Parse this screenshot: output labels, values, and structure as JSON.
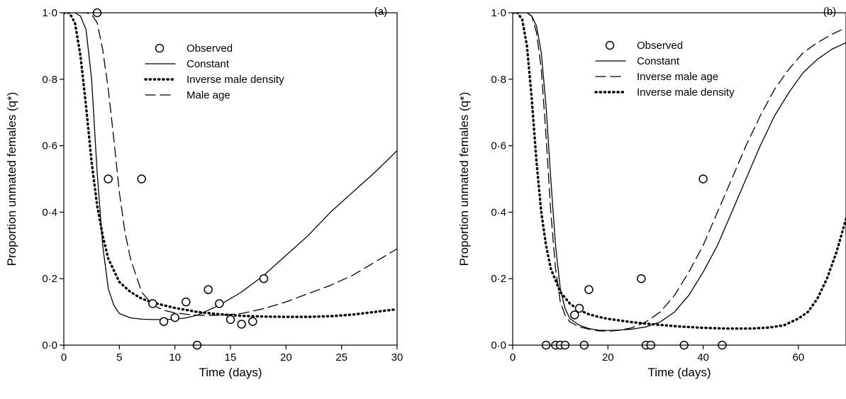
{
  "chart_data": [
    {
      "type": "scatter",
      "panel": "(a)",
      "xlabel": "Time (days)",
      "ylabel": "Proportion unmated females (q*)",
      "xlim": [
        0,
        30
      ],
      "ylim": [
        0,
        1
      ],
      "xticks": [
        0,
        5,
        10,
        15,
        20,
        25,
        30
      ],
      "xtick_labels": [
        "0",
        "5",
        "10",
        "15",
        "20",
        "25",
        "30"
      ],
      "yticks": [
        0,
        0.2,
        0.4,
        0.6,
        0.8,
        1.0
      ],
      "ytick_labels": [
        "0·0",
        "0·2",
        "0·4",
        "0·6",
        "0·8",
        "1·0"
      ],
      "legend_position": "upper-center",
      "series": [
        {
          "name": "Observed",
          "kind": "points",
          "x": [
            3,
            4,
            7,
            8,
            9,
            10,
            11,
            12,
            13,
            14,
            15,
            16,
            17,
            18
          ],
          "y": [
            1.0,
            0.5,
            0.5,
            0.125,
            0.071,
            0.083,
            0.13,
            0.0,
            0.167,
            0.125,
            0.077,
            0.063,
            0.071,
            0.2
          ]
        },
        {
          "name": "Constant",
          "kind": "line",
          "style": "solid",
          "x": [
            0,
            1,
            1.5,
            2,
            2.5,
            3,
            3.5,
            4,
            4.5,
            5,
            6,
            7,
            8,
            9,
            10,
            11,
            12,
            14,
            16,
            18,
            20,
            22,
            24,
            26,
            28,
            30
          ],
          "y": [
            1.0,
            1.0,
            0.99,
            0.95,
            0.8,
            0.52,
            0.3,
            0.17,
            0.12,
            0.095,
            0.082,
            0.078,
            0.077,
            0.077,
            0.078,
            0.082,
            0.09,
            0.12,
            0.16,
            0.21,
            0.27,
            0.33,
            0.4,
            0.46,
            0.52,
            0.585
          ]
        },
        {
          "name": "Inverse male density",
          "kind": "line",
          "style": "dotted",
          "x": [
            0,
            0.5,
            1,
            1.5,
            2,
            2.5,
            3,
            3.5,
            4,
            5,
            6,
            7,
            8,
            9,
            10,
            12,
            14,
            16,
            18,
            20,
            22,
            24,
            26,
            28,
            30
          ],
          "y": [
            1.0,
            1.0,
            0.97,
            0.87,
            0.72,
            0.55,
            0.42,
            0.33,
            0.26,
            0.19,
            0.16,
            0.14,
            0.128,
            0.12,
            0.112,
            0.1,
            0.093,
            0.088,
            0.086,
            0.085,
            0.085,
            0.087,
            0.092,
            0.1,
            0.108
          ]
        },
        {
          "name": "Male age",
          "kind": "line",
          "style": "dashed",
          "x": [
            0,
            2,
            2.5,
            3,
            3.5,
            4,
            4.5,
            5,
            5.5,
            6,
            7,
            8,
            9,
            10,
            11,
            12,
            14,
            16,
            18,
            20,
            22,
            24,
            26,
            28,
            30
          ],
          "y": [
            1.0,
            1.0,
            0.995,
            0.97,
            0.89,
            0.77,
            0.62,
            0.46,
            0.34,
            0.26,
            0.16,
            0.12,
            0.105,
            0.097,
            0.093,
            0.09,
            0.09,
            0.095,
            0.11,
            0.13,
            0.155,
            0.18,
            0.21,
            0.25,
            0.29
          ]
        }
      ]
    },
    {
      "type": "scatter",
      "panel": "(b)",
      "xlabel": "Time (days)",
      "ylabel": "Proportion unmated females (q*)",
      "xlim": [
        0,
        70
      ],
      "ylim": [
        0,
        1
      ],
      "xticks": [
        0,
        20,
        40,
        60
      ],
      "xtick_labels": [
        "0",
        "20",
        "40",
        "60"
      ],
      "yticks": [
        0,
        0.2,
        0.4,
        0.6,
        0.8,
        1.0
      ],
      "ytick_labels": [
        "0·0",
        "0·2",
        "0·4",
        "0·6",
        "0·8",
        "1·0"
      ],
      "legend_position": "upper-center",
      "series": [
        {
          "name": "Observed",
          "kind": "points",
          "x": [
            7,
            9,
            10,
            11,
            13,
            14,
            15,
            16,
            27,
            28,
            29,
            36,
            40,
            44
          ],
          "y": [
            0.0,
            0.0,
            0.0,
            0.0,
            0.091,
            0.111,
            0.0,
            0.167,
            0.2,
            0.0,
            0.0,
            0.0,
            0.5,
            0.0
          ]
        },
        {
          "name": "Constant",
          "kind": "line",
          "style": "solid",
          "x": [
            0,
            3,
            4,
            5,
            6,
            7,
            8,
            9,
            10,
            11,
            12,
            14,
            16,
            18,
            20,
            22,
            25,
            28,
            31,
            34,
            37,
            40,
            43,
            46,
            49,
            52,
            55,
            58,
            61,
            64,
            67,
            70
          ],
          "y": [
            1.0,
            1.0,
            0.99,
            0.96,
            0.88,
            0.72,
            0.5,
            0.3,
            0.17,
            0.11,
            0.08,
            0.06,
            0.05,
            0.045,
            0.044,
            0.045,
            0.048,
            0.055,
            0.07,
            0.1,
            0.15,
            0.22,
            0.3,
            0.4,
            0.5,
            0.6,
            0.69,
            0.76,
            0.82,
            0.86,
            0.89,
            0.91
          ]
        },
        {
          "name": "Inverse male age",
          "kind": "line",
          "style": "dashed",
          "x": [
            0,
            3,
            4,
            5,
            6,
            7,
            8,
            9,
            10,
            11,
            12,
            14,
            16,
            18,
            20,
            22,
            25,
            28,
            31,
            34,
            37,
            40,
            43,
            46,
            49,
            52,
            55,
            58,
            61,
            64,
            67,
            70
          ],
          "y": [
            1.0,
            1.0,
            0.99,
            0.94,
            0.83,
            0.63,
            0.4,
            0.23,
            0.13,
            0.09,
            0.07,
            0.055,
            0.048,
            0.043,
            0.042,
            0.044,
            0.052,
            0.07,
            0.1,
            0.15,
            0.22,
            0.3,
            0.4,
            0.5,
            0.6,
            0.69,
            0.77,
            0.83,
            0.88,
            0.91,
            0.935,
            0.955
          ]
        },
        {
          "name": "Inverse male density",
          "kind": "line",
          "style": "dotted",
          "x": [
            0,
            1,
            2,
            3,
            4,
            5,
            6,
            7,
            8,
            10,
            12,
            14,
            16,
            18,
            20,
            25,
            30,
            35,
            40,
            45,
            50,
            54,
            57,
            60,
            62,
            64,
            66,
            68,
            70
          ],
          "y": [
            1.0,
            1.0,
            0.98,
            0.9,
            0.74,
            0.55,
            0.4,
            0.3,
            0.23,
            0.16,
            0.125,
            0.105,
            0.093,
            0.085,
            0.079,
            0.069,
            0.062,
            0.056,
            0.052,
            0.05,
            0.05,
            0.053,
            0.06,
            0.08,
            0.1,
            0.14,
            0.2,
            0.28,
            0.38
          ]
        }
      ]
    }
  ]
}
